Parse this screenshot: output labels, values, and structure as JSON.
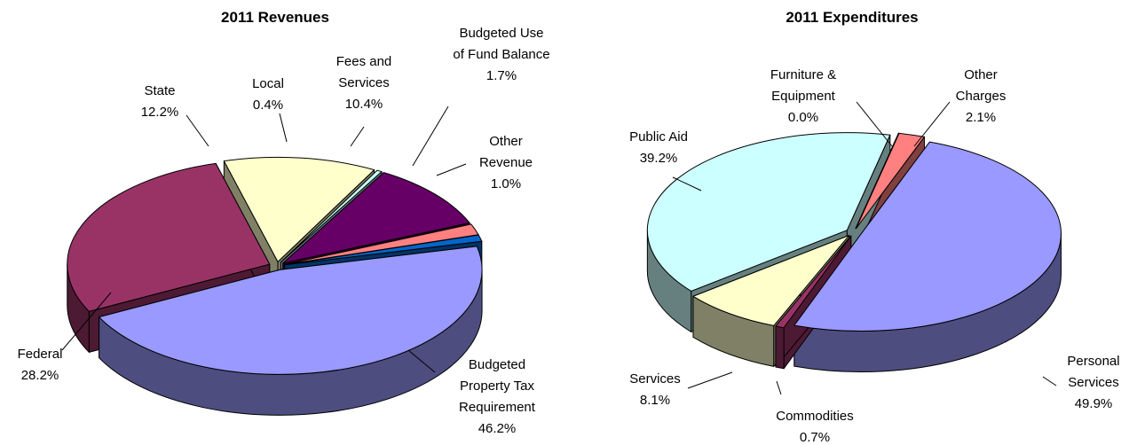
{
  "chart_data": [
    {
      "type": "pie3d",
      "title": "2011 Revenues",
      "categories": [
        "Budgeted Property Tax Requirement",
        "Federal",
        "State",
        "Local",
        "Fees and Services",
        "Budgeted Use of Fund Balance",
        "Other Revenue"
      ],
      "values": [
        46.2,
        28.2,
        12.2,
        0.4,
        10.4,
        1.7,
        1.0
      ],
      "value_labels": [
        "46.2%",
        "28.2%",
        "12.2%",
        "0.4%",
        "10.4%",
        "1.7%",
        "1.0%"
      ],
      "colors": [
        "#9999ff",
        "#993366",
        "#ffffcc",
        "#ccffff",
        "#660066",
        "#ff8080",
        "#0066cc"
      ]
    },
    {
      "type": "pie3d",
      "title": "2011 Expenditures",
      "categories": [
        "Personal Services",
        "Commodities",
        "Services",
        "Public Aid",
        "Furniture & Equipment",
        "Other Charges"
      ],
      "values": [
        49.9,
        0.7,
        8.1,
        39.2,
        0.0,
        2.1
      ],
      "value_labels": [
        "49.9%",
        "0.7%",
        "8.1%",
        "39.2%",
        "0.0%",
        "2.1%"
      ],
      "colors": [
        "#9999ff",
        "#993366",
        "#ffffcc",
        "#ccffff",
        "#660066",
        "#ff8080"
      ]
    }
  ]
}
